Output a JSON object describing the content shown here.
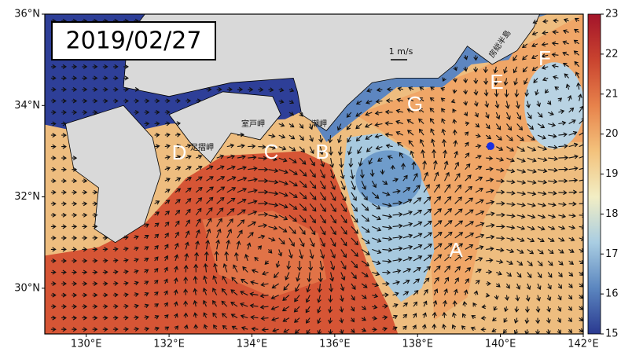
{
  "map": {
    "date": "2019/02/27",
    "scale_label": "1 m/s",
    "xlim": [
      129,
      142
    ],
    "ylim": [
      29,
      36
    ],
    "xticks": [
      {
        "value": 130,
        "label": "130°E"
      },
      {
        "value": 132,
        "label": "132°E"
      },
      {
        "value": 134,
        "label": "134°E"
      },
      {
        "value": 136,
        "label": "136°E"
      },
      {
        "value": 138,
        "label": "138°E"
      },
      {
        "value": 140,
        "label": "140°E"
      },
      {
        "value": 142,
        "label": "142°E"
      }
    ],
    "yticks": [
      {
        "value": 30,
        "label": "30°N"
      },
      {
        "value": 32,
        "label": "32°N"
      },
      {
        "value": 34,
        "label": "34°N"
      },
      {
        "value": 36,
        "label": "36°N"
      }
    ],
    "colorbar": {
      "lim": [
        15,
        23
      ],
      "ticks": [
        15,
        16,
        17,
        18,
        19,
        20,
        21,
        22,
        23
      ],
      "colors": [
        "#2a3990",
        "#5b86bf",
        "#a9cde2",
        "#f2eec4",
        "#f3c27c",
        "#e7824b",
        "#c9432f",
        "#a3142a"
      ]
    },
    "region_labels": [
      "A",
      "B",
      "C",
      "D",
      "E",
      "F",
      "G"
    ],
    "place_labels": [
      "足摺岬",
      "室戸岬",
      "潮岬",
      "房総半島"
    ]
  }
}
